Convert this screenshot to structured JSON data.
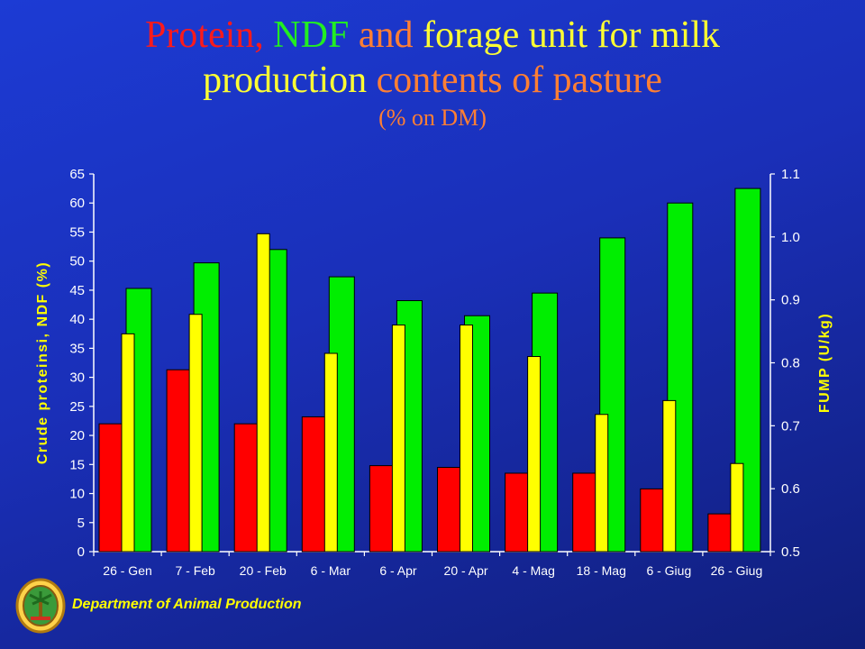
{
  "slide": {
    "title_parts": [
      "Protein",
      ", ",
      "NDF",
      " and ",
      "forage unit for milk"
    ],
    "title_line2_parts": [
      "production",
      " contents of pasture"
    ],
    "subtitle": "(% on DM)",
    "footer": "Department of Animal Production"
  },
  "colors": {
    "protein": "#ff0000",
    "ndf": "#00ee00",
    "fump": "#ffff00",
    "title_red": "#ff1a1a",
    "title_green": "#22ee22",
    "title_orange": "#ff7f33",
    "title_yellow": "#ffff33",
    "axis_text": "#ffffff",
    "axis_title": "#ffff00"
  },
  "chart_data": {
    "type": "bar",
    "categories": [
      "26 - Gen",
      "7 - Feb",
      "20 - Feb",
      "6 - Mar",
      "6 - Apr",
      "20 - Apr",
      "4 - Mag",
      "18 - Mag",
      "6 - Giug",
      "26 - Giug"
    ],
    "series": [
      {
        "key": "protein",
        "axis": "left",
        "values": [
          22,
          31.3,
          22,
          23.2,
          14.8,
          14.5,
          13.5,
          13.5,
          10.8,
          6.5
        ]
      },
      {
        "key": "fump",
        "axis": "right",
        "values": [
          0.846,
          0.877,
          1.005,
          0.815,
          0.86,
          0.86,
          0.81,
          0.718,
          0.74,
          0.64
        ]
      },
      {
        "key": "ndf",
        "axis": "left",
        "values": [
          45.3,
          49.7,
          52,
          47.3,
          43.2,
          40.6,
          44.5,
          54,
          60,
          62.5
        ]
      }
    ],
    "ylabel": "Crude proteinsi, NDF (%)",
    "y2label": "FUMP (U/kg)",
    "ylim": [
      0,
      65
    ],
    "yticks": [
      "0",
      "5",
      "10",
      "15",
      "20",
      "25",
      "30",
      "35",
      "40",
      "45",
      "50",
      "55",
      "60",
      "65"
    ],
    "y2lim": [
      0.5,
      1.1
    ],
    "y2ticks": [
      "0.5",
      "0.6",
      "0.7",
      "0.8",
      "0.9",
      "1.0",
      "1.1"
    ],
    "legend": false,
    "grid": false
  }
}
